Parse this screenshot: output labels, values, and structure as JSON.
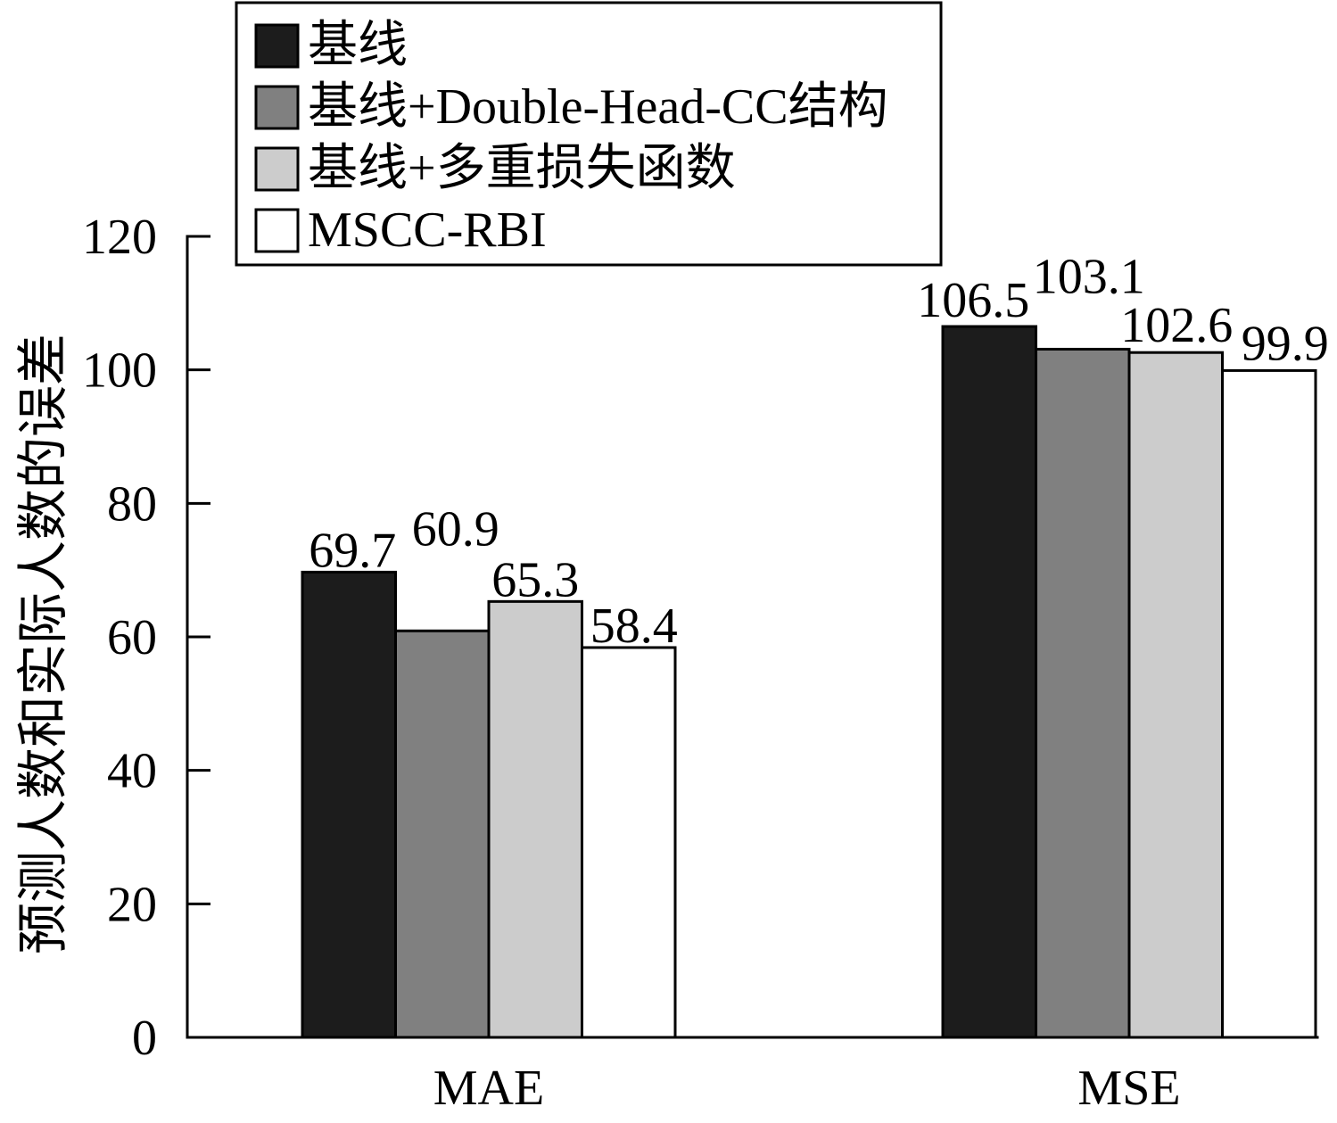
{
  "chart_data": {
    "type": "bar",
    "categories": [
      "MAE",
      "MSE"
    ],
    "series": [
      {
        "name": "基线",
        "values": [
          69.7,
          106.5
        ],
        "color": "#1c1c1c"
      },
      {
        "name": "基线+Double-Head-CC结构",
        "values": [
          60.9,
          103.1
        ],
        "color": "#808080"
      },
      {
        "name": "基线+多重损失函数",
        "values": [
          65.3,
          102.6
        ],
        "color": "#cccccc"
      },
      {
        "name": "MSCC-RBI",
        "values": [
          58.4,
          99.9
        ],
        "color": "#ffffff"
      }
    ],
    "xlabel": "",
    "ylabel": "预测人数和实际人数的误差",
    "ylim": [
      0,
      120
    ],
    "yticks": [
      0,
      20,
      40,
      60,
      80,
      100,
      120
    ],
    "grid": false,
    "legend_position": "top-left",
    "data_labels_shown": true
  }
}
